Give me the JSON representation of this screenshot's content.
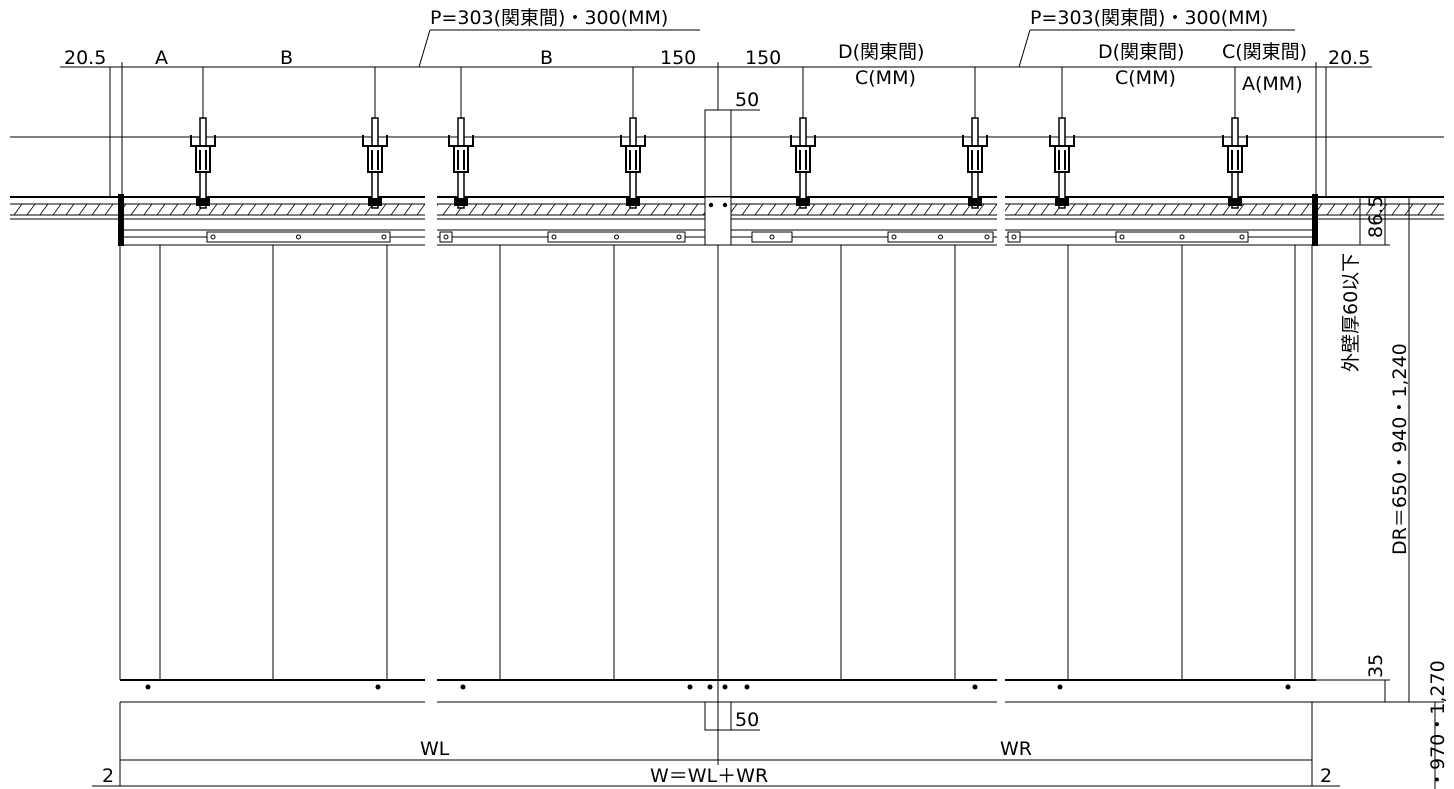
{
  "drawing": {
    "pitch_left": "P=303(関東間)・300(MM)",
    "pitch_right": "P=303(関東間)・300(MM)",
    "edge_left": "20.5",
    "edge_right": "20.5",
    "col_a": "A",
    "col_b1": "B",
    "col_b2": "B",
    "dim_150_left": "150",
    "dim_150_right": "150",
    "d_kanto_1": "D(関東間)",
    "c_mm_1": "C(MM)",
    "d_kanto_2": "D(関東間)",
    "c_mm_2": "C(MM)",
    "c_kanto": "C(関東間)",
    "a_mm": "A(MM)",
    "joint_top": "50",
    "joint_bottom": "50",
    "dim_86_5": "86.5",
    "wall_note": "外壁厚60以下",
    "dr_label": "DR＝650・940・1,240",
    "dim_35": "35",
    "height_label": "・970・1,270",
    "wl": "WL",
    "wr": "WR",
    "w_total": "W＝WL＋WR",
    "margin_left": "2",
    "margin_right": "2"
  }
}
